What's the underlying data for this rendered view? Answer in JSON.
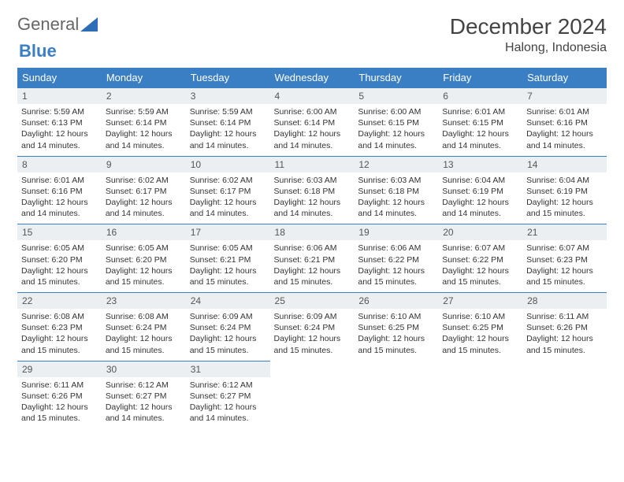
{
  "logo": {
    "part1": "General",
    "part2": "Blue"
  },
  "title": "December 2024",
  "location": "Halong, Indonesia",
  "colors": {
    "header_bg": "#3a7fc4",
    "header_fg": "#ffffff",
    "daynum_bg": "#eceff1",
    "border": "#3a7fc4",
    "text": "#333333"
  },
  "weekdays": [
    "Sunday",
    "Monday",
    "Tuesday",
    "Wednesday",
    "Thursday",
    "Friday",
    "Saturday"
  ],
  "weeks": [
    [
      {
        "n": "1",
        "sr": "5:59 AM",
        "ss": "6:13 PM",
        "dl": "12 hours and 14 minutes."
      },
      {
        "n": "2",
        "sr": "5:59 AM",
        "ss": "6:14 PM",
        "dl": "12 hours and 14 minutes."
      },
      {
        "n": "3",
        "sr": "5:59 AM",
        "ss": "6:14 PM",
        "dl": "12 hours and 14 minutes."
      },
      {
        "n": "4",
        "sr": "6:00 AM",
        "ss": "6:14 PM",
        "dl": "12 hours and 14 minutes."
      },
      {
        "n": "5",
        "sr": "6:00 AM",
        "ss": "6:15 PM",
        "dl": "12 hours and 14 minutes."
      },
      {
        "n": "6",
        "sr": "6:01 AM",
        "ss": "6:15 PM",
        "dl": "12 hours and 14 minutes."
      },
      {
        "n": "7",
        "sr": "6:01 AM",
        "ss": "6:16 PM",
        "dl": "12 hours and 14 minutes."
      }
    ],
    [
      {
        "n": "8",
        "sr": "6:01 AM",
        "ss": "6:16 PM",
        "dl": "12 hours and 14 minutes."
      },
      {
        "n": "9",
        "sr": "6:02 AM",
        "ss": "6:17 PM",
        "dl": "12 hours and 14 minutes."
      },
      {
        "n": "10",
        "sr": "6:02 AM",
        "ss": "6:17 PM",
        "dl": "12 hours and 14 minutes."
      },
      {
        "n": "11",
        "sr": "6:03 AM",
        "ss": "6:18 PM",
        "dl": "12 hours and 14 minutes."
      },
      {
        "n": "12",
        "sr": "6:03 AM",
        "ss": "6:18 PM",
        "dl": "12 hours and 14 minutes."
      },
      {
        "n": "13",
        "sr": "6:04 AM",
        "ss": "6:19 PM",
        "dl": "12 hours and 14 minutes."
      },
      {
        "n": "14",
        "sr": "6:04 AM",
        "ss": "6:19 PM",
        "dl": "12 hours and 15 minutes."
      }
    ],
    [
      {
        "n": "15",
        "sr": "6:05 AM",
        "ss": "6:20 PM",
        "dl": "12 hours and 15 minutes."
      },
      {
        "n": "16",
        "sr": "6:05 AM",
        "ss": "6:20 PM",
        "dl": "12 hours and 15 minutes."
      },
      {
        "n": "17",
        "sr": "6:05 AM",
        "ss": "6:21 PM",
        "dl": "12 hours and 15 minutes."
      },
      {
        "n": "18",
        "sr": "6:06 AM",
        "ss": "6:21 PM",
        "dl": "12 hours and 15 minutes."
      },
      {
        "n": "19",
        "sr": "6:06 AM",
        "ss": "6:22 PM",
        "dl": "12 hours and 15 minutes."
      },
      {
        "n": "20",
        "sr": "6:07 AM",
        "ss": "6:22 PM",
        "dl": "12 hours and 15 minutes."
      },
      {
        "n": "21",
        "sr": "6:07 AM",
        "ss": "6:23 PM",
        "dl": "12 hours and 15 minutes."
      }
    ],
    [
      {
        "n": "22",
        "sr": "6:08 AM",
        "ss": "6:23 PM",
        "dl": "12 hours and 15 minutes."
      },
      {
        "n": "23",
        "sr": "6:08 AM",
        "ss": "6:24 PM",
        "dl": "12 hours and 15 minutes."
      },
      {
        "n": "24",
        "sr": "6:09 AM",
        "ss": "6:24 PM",
        "dl": "12 hours and 15 minutes."
      },
      {
        "n": "25",
        "sr": "6:09 AM",
        "ss": "6:24 PM",
        "dl": "12 hours and 15 minutes."
      },
      {
        "n": "26",
        "sr": "6:10 AM",
        "ss": "6:25 PM",
        "dl": "12 hours and 15 minutes."
      },
      {
        "n": "27",
        "sr": "6:10 AM",
        "ss": "6:25 PM",
        "dl": "12 hours and 15 minutes."
      },
      {
        "n": "28",
        "sr": "6:11 AM",
        "ss": "6:26 PM",
        "dl": "12 hours and 15 minutes."
      }
    ],
    [
      {
        "n": "29",
        "sr": "6:11 AM",
        "ss": "6:26 PM",
        "dl": "12 hours and 15 minutes."
      },
      {
        "n": "30",
        "sr": "6:12 AM",
        "ss": "6:27 PM",
        "dl": "12 hours and 14 minutes."
      },
      {
        "n": "31",
        "sr": "6:12 AM",
        "ss": "6:27 PM",
        "dl": "12 hours and 14 minutes."
      },
      null,
      null,
      null,
      null
    ]
  ],
  "labels": {
    "sunrise": "Sunrise:",
    "sunset": "Sunset:",
    "daylight": "Daylight:"
  }
}
